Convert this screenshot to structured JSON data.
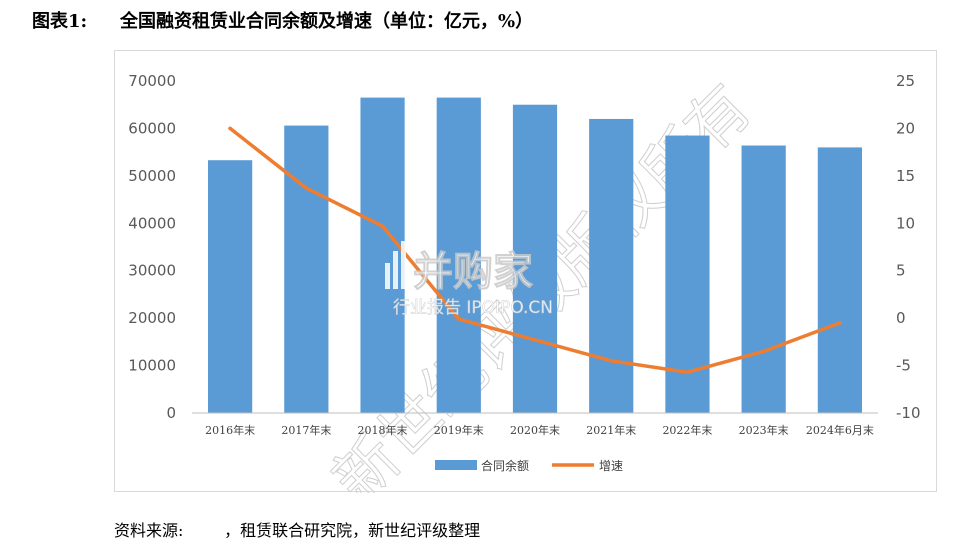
{
  "figure": {
    "label": "图表1:",
    "title": "全国融资租赁业合同余额及增速（单位：亿元，%）"
  },
  "source": {
    "label": "资料来源:",
    "text": "，租赁联合研究院，新世纪评级整理"
  },
  "watermark": {
    "brand": "并购家",
    "tagline": "行业报告 IPOIPO.CN",
    "diagonal": "新世纪评级版权所有"
  },
  "chart_data": {
    "type": "bar",
    "categories": [
      "2016年末",
      "2017年末",
      "2018年末",
      "2019年末",
      "2020年末",
      "2021年末",
      "2022年末",
      "2023年末",
      "2024年6月末"
    ],
    "series": [
      {
        "name": "合同余额",
        "type": "bar",
        "axis": "left",
        "color": "#5b9bd5",
        "values": [
          53300,
          60600,
          66500,
          66500,
          65000,
          62000,
          58500,
          56400,
          56000
        ]
      },
      {
        "name": "增速",
        "type": "line",
        "axis": "right",
        "color": "#ed7d31",
        "values": [
          20.0,
          13.7,
          9.7,
          -0.1,
          -2.3,
          -4.5,
          -5.7,
          -3.5,
          -0.5
        ]
      }
    ],
    "y_left": {
      "min": 0,
      "max": 70000,
      "ticks": [
        "0",
        "10000",
        "20000",
        "30000",
        "40000",
        "50000",
        "60000",
        "70000"
      ]
    },
    "y_right": {
      "min": -10,
      "max": 25,
      "ticks": [
        "-10",
        "-5",
        "0",
        "5",
        "10",
        "15",
        "20",
        "25"
      ]
    },
    "grid": false,
    "legend": "bottom"
  }
}
